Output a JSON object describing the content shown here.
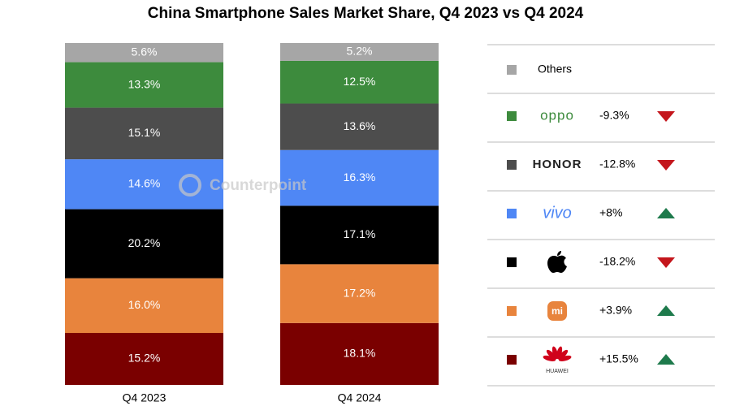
{
  "chart_data": {
    "type": "stacked_bar",
    "title": "China Smartphone Sales Market Share, Q4 2023 vs Q4 2024",
    "watermark": "Counterpoint",
    "categories": [
      "Q4 2023",
      "Q4 2024"
    ],
    "ylim": [
      0,
      100
    ],
    "series": [
      {
        "name": "Others",
        "color": "#a6a6a6",
        "values": [
          5.6,
          5.2
        ],
        "value_labels": [
          "5.6%",
          "5.2%"
        ],
        "change": null,
        "change_label": null
      },
      {
        "name": "oppo",
        "color": "#3d8b3d",
        "values": [
          13.3,
          12.5
        ],
        "value_labels": [
          "13.3%",
          "12.5%"
        ],
        "change": -9.3,
        "change_label": "-9.3%"
      },
      {
        "name": "HONOR",
        "color": "#4d4d4d",
        "values": [
          15.1,
          13.6
        ],
        "value_labels": [
          "15.1%",
          "13.6%"
        ],
        "change": -12.8,
        "change_label": "-12.8%"
      },
      {
        "name": "vivo",
        "color": "#4f87f5",
        "values": [
          14.6,
          16.3
        ],
        "value_labels": [
          "14.6%",
          "16.3%"
        ],
        "change": 8,
        "change_label": "+8%"
      },
      {
        "name": null,
        "color": "#000000",
        "values": [
          20.2,
          17.1
        ],
        "value_labels": [
          "20.2%",
          "17.1%"
        ],
        "change": -18.2,
        "change_label": "-18.2%"
      },
      {
        "name": "mi",
        "color": "#e8843d",
        "values": [
          16.0,
          17.2
        ],
        "value_labels": [
          "16.0%",
          "17.2%"
        ],
        "change": 3.9,
        "change_label": "+3.9%"
      },
      {
        "name": "HUAWEI",
        "color": "#7a0000",
        "values": [
          15.2,
          18.1
        ],
        "value_labels": [
          "15.2%",
          "18.1%"
        ],
        "change": 15.5,
        "change_label": "+15.5%"
      }
    ]
  }
}
